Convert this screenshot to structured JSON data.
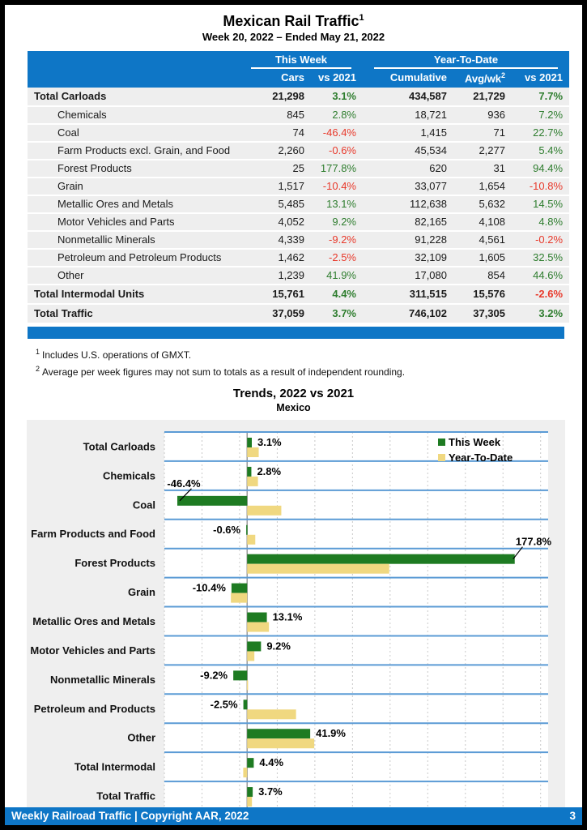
{
  "colors": {
    "blue": "#0e76c6",
    "band_line_blue": "#5b9bd5",
    "green_text": "#2e7d2e",
    "red_text": "#e8392b",
    "bar_green": "#1e7b22",
    "bar_yellow": "#f0d880",
    "zero_line": "#9a9a9a",
    "grid_dash": "#c9c9c9"
  },
  "header": {
    "title": "Mexican Rail Traffic",
    "title_sup": "1",
    "subtitle": "Week 20, 2022 – Ended May 21, 2022"
  },
  "table": {
    "group_this_week": "This Week",
    "group_ytd": "Year-To-Date",
    "col_cars": "Cars",
    "col_tw_pct": "vs 2021",
    "col_cumulative": "Cumulative",
    "col_avg": "Avg/wk",
    "col_avg_sup": "2",
    "col_ytd_pct": "vs 2021",
    "rows": [
      {
        "label": "Total Carloads",
        "bold": true,
        "cars": "21,298",
        "tw_pct": "3.1%",
        "cumulative": "434,587",
        "avg_wk": "21,729",
        "ytd_pct": "7.7%"
      },
      {
        "label": "Chemicals",
        "bold": false,
        "cars": "845",
        "tw_pct": "2.8%",
        "cumulative": "18,721",
        "avg_wk": "936",
        "ytd_pct": "7.2%"
      },
      {
        "label": "Coal",
        "bold": false,
        "cars": "74",
        "tw_pct": "-46.4%",
        "cumulative": "1,415",
        "avg_wk": "71",
        "ytd_pct": "22.7%"
      },
      {
        "label": "Farm Products excl. Grain, and Food",
        "bold": false,
        "cars": "2,260",
        "tw_pct": "-0.6%",
        "cumulative": "45,534",
        "avg_wk": "2,277",
        "ytd_pct": "5.4%"
      },
      {
        "label": "Forest Products",
        "bold": false,
        "cars": "25",
        "tw_pct": "177.8%",
        "cumulative": "620",
        "avg_wk": "31",
        "ytd_pct": "94.4%"
      },
      {
        "label": "Grain",
        "bold": false,
        "cars": "1,517",
        "tw_pct": "-10.4%",
        "cumulative": "33,077",
        "avg_wk": "1,654",
        "ytd_pct": "-10.8%"
      },
      {
        "label": "Metallic Ores and Metals",
        "bold": false,
        "cars": "5,485",
        "tw_pct": "13.1%",
        "cumulative": "112,638",
        "avg_wk": "5,632",
        "ytd_pct": "14.5%"
      },
      {
        "label": "Motor Vehicles and Parts",
        "bold": false,
        "cars": "4,052",
        "tw_pct": "9.2%",
        "cumulative": "82,165",
        "avg_wk": "4,108",
        "ytd_pct": "4.8%"
      },
      {
        "label": "Nonmetallic Minerals",
        "bold": false,
        "cars": "4,339",
        "tw_pct": "-9.2%",
        "cumulative": "91,228",
        "avg_wk": "4,561",
        "ytd_pct": "-0.2%"
      },
      {
        "label": "Petroleum and Petroleum Products",
        "bold": false,
        "cars": "1,462",
        "tw_pct": "-2.5%",
        "cumulative": "32,109",
        "avg_wk": "1,605",
        "ytd_pct": "32.5%"
      },
      {
        "label": "Other",
        "bold": false,
        "cars": "1,239",
        "tw_pct": "41.9%",
        "cumulative": "17,080",
        "avg_wk": "854",
        "ytd_pct": "44.6%"
      },
      {
        "label": "Total Intermodal Units",
        "bold": true,
        "cars": "15,761",
        "tw_pct": "4.4%",
        "cumulative": "311,515",
        "avg_wk": "15,576",
        "ytd_pct": "-2.6%"
      },
      {
        "label": "Total Traffic",
        "bold": true,
        "cars": "37,059",
        "tw_pct": "3.7%",
        "cumulative": "746,102",
        "avg_wk": "37,305",
        "ytd_pct": "3.2%"
      }
    ]
  },
  "footnotes": [
    {
      "sup": "1",
      "text": "Includes U.S. operations of GMXT."
    },
    {
      "sup": "2",
      "text": "Average per week figures may not sum to totals as a result of independent rounding."
    }
  ],
  "chart_data": {
    "type": "bar",
    "orientation": "horizontal",
    "title": "Trends, 2022 vs 2021",
    "subtitle": "Mexico",
    "categories": [
      "Total Carloads",
      "Chemicals",
      "Coal",
      "Farm Products and Food",
      "Forest Products",
      "Grain",
      "Metallic Ores and Metals",
      "Motor Vehicles and Parts",
      "Nonmetallic Minerals",
      "Petroleum and Products",
      "Other",
      "Total Intermodal",
      "Total Traffic"
    ],
    "series": [
      {
        "name": "This Week",
        "values": [
          3.1,
          2.8,
          -46.4,
          -0.6,
          177.8,
          -10.4,
          13.1,
          9.2,
          -9.2,
          -2.5,
          41.9,
          4.4,
          3.7
        ]
      },
      {
        "name": "Year-To-Date",
        "values": [
          7.7,
          7.2,
          22.7,
          5.4,
          94.4,
          -10.8,
          14.5,
          4.8,
          -0.2,
          32.5,
          44.6,
          -2.6,
          3.2
        ]
      }
    ],
    "bar_labels": [
      "3.1%",
      "2.8%",
      "-46.4%",
      "-0.6%",
      "177.8%",
      "-10.4%",
      "13.1%",
      "9.2%",
      "-9.2%",
      "-2.5%",
      "41.9%",
      "4.4%",
      "3.7%"
    ],
    "callout_indices": [
      2,
      4
    ],
    "xlim": [
      -55,
      200
    ],
    "tick_values": [
      -55,
      -30,
      -5,
      20,
      45,
      70,
      95,
      120,
      145,
      170,
      195
    ],
    "tick_labels": [
      "-55%",
      "-30%",
      "-5%",
      "20%",
      "45%",
      "70%",
      "95%",
      "120%",
      "145%",
      "170%",
      "195%"
    ],
    "legend_position": "top-right",
    "grid": "dashed-vertical"
  },
  "footer": {
    "left": "Weekly Railroad Traffic | Copyright AAR, 2022",
    "page": "3"
  }
}
